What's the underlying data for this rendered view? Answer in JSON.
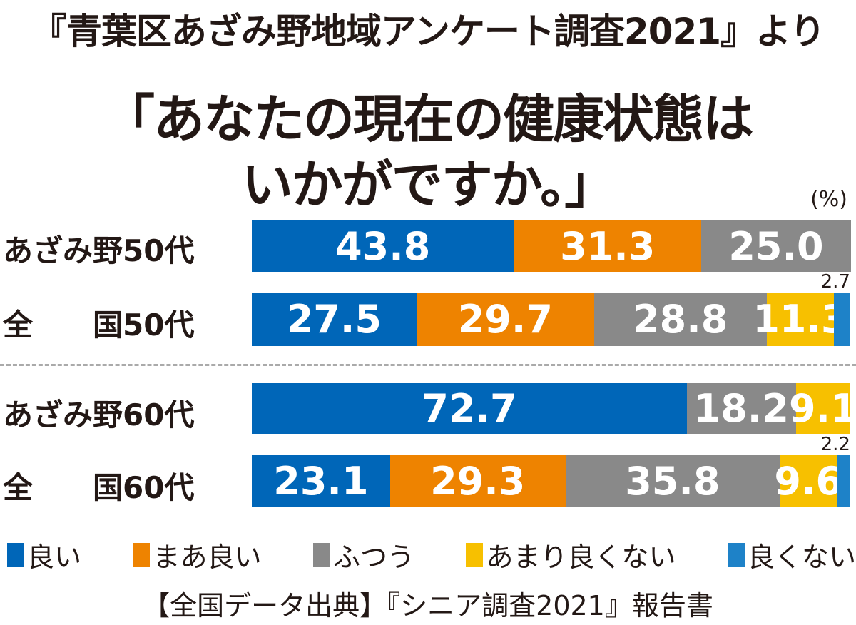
{
  "chart_data": {
    "type": "bar",
    "stacked": true,
    "orientation": "horizontal",
    "source_line": "『青葉区あざみ野地域アンケート調査2021』より",
    "title_line1": "「あなたの現在の健康状態は",
    "title_line2": "いかがですか。」",
    "unit": "(%)",
    "categories": [
      "あざみ野50代",
      "全　　国50代",
      "あざみ野60代",
      "全　　国60代"
    ],
    "series": [
      {
        "name": "良い",
        "color": "#0066b8",
        "values": [
          43.8,
          27.5,
          72.7,
          23.1
        ]
      },
      {
        "name": "まあ良い",
        "color": "#ee8300",
        "values": [
          31.3,
          29.7,
          0,
          29.3
        ]
      },
      {
        "name": "ふつう",
        "color": "#898989",
        "values": [
          25.0,
          28.8,
          18.2,
          35.8
        ]
      },
      {
        "name": "あまり良くない",
        "color": "#f7c000",
        "values": [
          0,
          11.3,
          9.1,
          9.6
        ]
      },
      {
        "name": "良くない",
        "color": "#1e82c8",
        "values": [
          0,
          2.7,
          0,
          2.2
        ]
      }
    ],
    "xlim": [
      0,
      100
    ],
    "legend_position": "bottom",
    "footer": "【全国データ出典】『シニア調査2021』報告書"
  }
}
